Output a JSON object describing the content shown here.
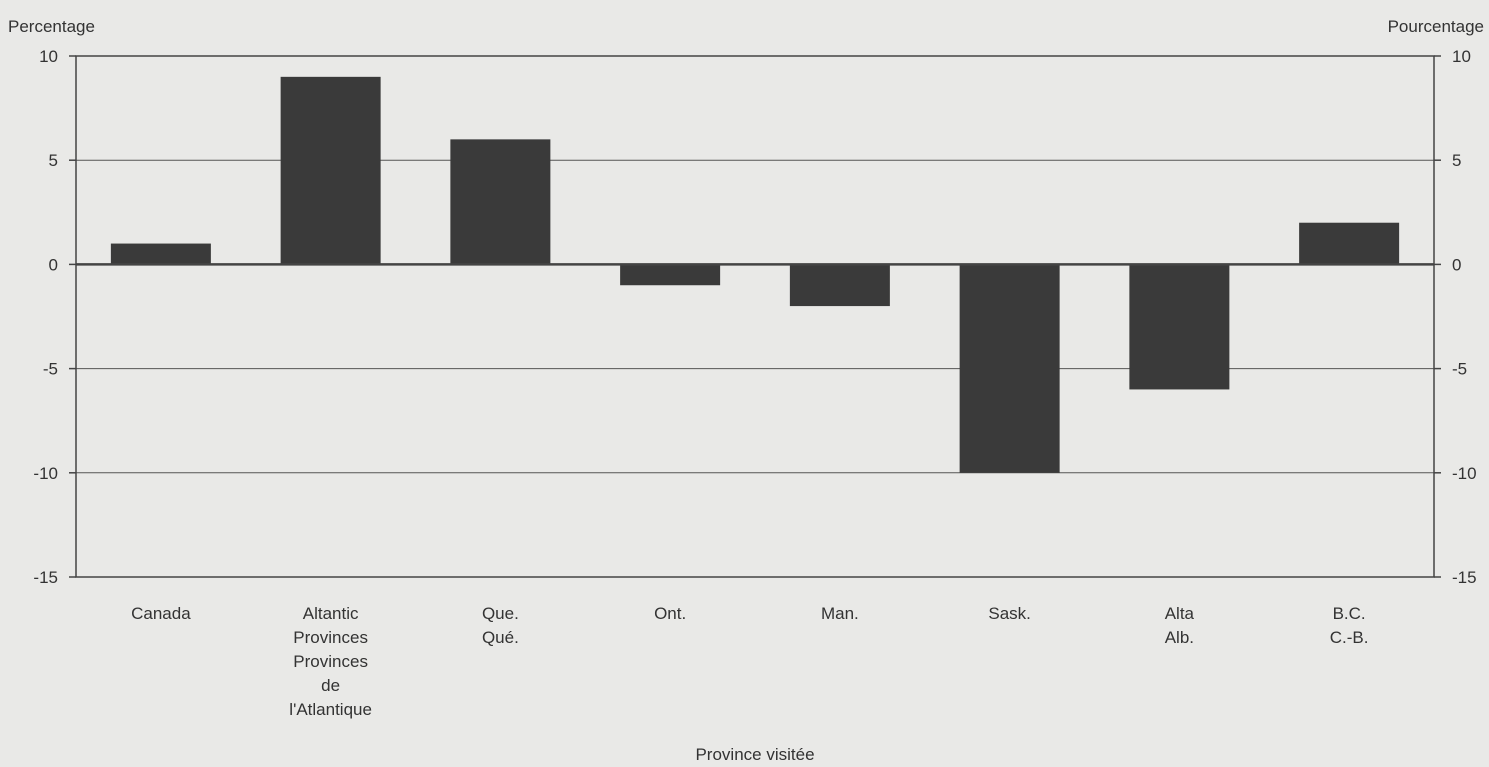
{
  "chart_data": {
    "type": "bar",
    "title": "",
    "ylabel_left": "Percentage",
    "ylabel_right": "Pourcentage",
    "xlabel": "Province visitée",
    "ylim": [
      -15,
      10
    ],
    "yticks": [
      10,
      5,
      0,
      -5,
      -10,
      -15
    ],
    "ytick_labels": [
      "10",
      "5",
      "0",
      "-5",
      "-10",
      "-15"
    ],
    "grid": true,
    "categories": [
      [
        "Canada"
      ],
      [
        "Altantic",
        "Provinces",
        "Provinces",
        "de",
        "l'Atlantique"
      ],
      [
        "Que.",
        "Qué."
      ],
      [
        "Ont."
      ],
      [
        "Man."
      ],
      [
        "Sask."
      ],
      [
        "Alta",
        "Alb."
      ],
      [
        "B.C.",
        "C.-B."
      ]
    ],
    "values": [
      1,
      9,
      6,
      -1,
      -2,
      -10,
      -6,
      2
    ],
    "colors": {
      "bar": "#3a3a3a",
      "axis": "#444444",
      "grid": "#555555",
      "background": "#e9e9e7",
      "text": "#333333"
    }
  }
}
